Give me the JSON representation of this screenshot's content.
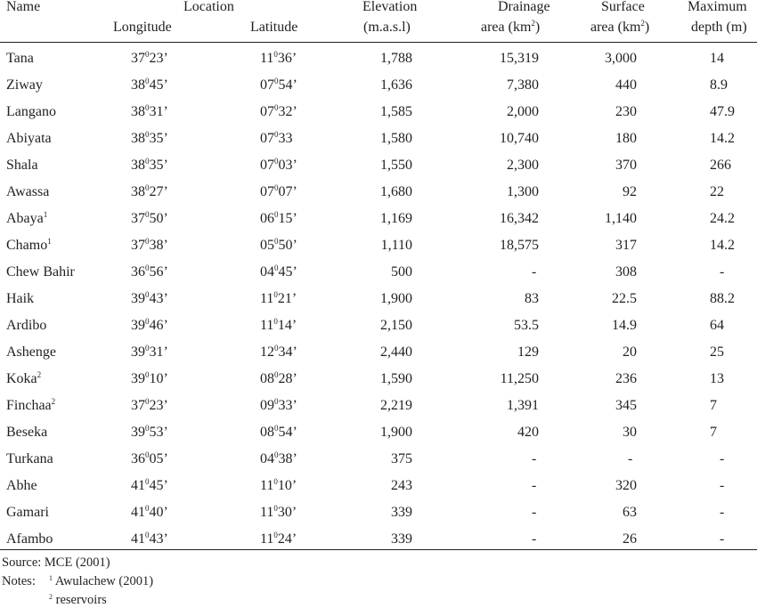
{
  "header": {
    "name": "Name",
    "location": "Location",
    "longitude": "Longitude",
    "latitude": "Latitude",
    "elevation_line1": "Elevation",
    "elevation_line2": "(m.a.s.l)",
    "drainage_line1": "Drainage",
    "drainage_line2": "area (km",
    "surface_line1": "Surface",
    "surface_line2": "area (km",
    "sq_unit_sup": "2",
    "unit_close": ")",
    "depth_line1": "Maximum",
    "depth_line2": "depth (m)"
  },
  "degree_symbol": "0",
  "rows": [
    {
      "name": "Tana",
      "sup": "",
      "lon_deg": "37",
      "lon_min": "23’",
      "lat_deg": "11",
      "lat_min": "36’",
      "elevation": "1,788",
      "drainage": "15,319",
      "surface": "3,000",
      "depth": "14"
    },
    {
      "name": "Ziway",
      "sup": "",
      "lon_deg": "38",
      "lon_min": "45’",
      "lat_deg": "07",
      "lat_min": "54’",
      "elevation": "1,636",
      "drainage": "7,380",
      "surface": "440",
      "depth": "8.9"
    },
    {
      "name": "Langano",
      "sup": "",
      "lon_deg": "38",
      "lon_min": "31’",
      "lat_deg": "07",
      "lat_min": "32’",
      "elevation": "1,585",
      "drainage": "2,000",
      "surface": "230",
      "depth": "47.9"
    },
    {
      "name": "Abiyata",
      "sup": "",
      "lon_deg": "38",
      "lon_min": "35’",
      "lat_deg": "07",
      "lat_min": "33",
      "elevation": "1,580",
      "drainage": "10,740",
      "surface": "180",
      "depth": "14.2"
    },
    {
      "name": "Shala",
      "sup": "",
      "lon_deg": "38",
      "lon_min": "35’",
      "lat_deg": "07",
      "lat_min": "03’",
      "elevation": "1,550",
      "drainage": "2,300",
      "surface": "370",
      "depth": "266"
    },
    {
      "name": "Awassa",
      "sup": "",
      "lon_deg": "38",
      "lon_min": "27’",
      "lat_deg": "07",
      "lat_min": "07’",
      "elevation": "1,680",
      "drainage": "1,300",
      "surface": "92",
      "depth": "22"
    },
    {
      "name": "Abaya",
      "sup": "1",
      "lon_deg": "37",
      "lon_min": "50’",
      "lat_deg": "06",
      "lat_min": "15’",
      "elevation": "1,169",
      "drainage": "16,342",
      "surface": "1,140",
      "depth": "24.2"
    },
    {
      "name": "Chamo",
      "sup": "1",
      "lon_deg": "37",
      "lon_min": "38’",
      "lat_deg": "05",
      "lat_min": "50’",
      "elevation": "1,110",
      "drainage": "18,575",
      "surface": "317",
      "depth": "14.2"
    },
    {
      "name": "Chew Bahir",
      "sup": "",
      "lon_deg": "36",
      "lon_min": "56’",
      "lat_deg": "04",
      "lat_min": "45’",
      "elevation": "500",
      "drainage": "-",
      "surface": "308",
      "depth": "-"
    },
    {
      "name": "Haik",
      "sup": "",
      "lon_deg": "39",
      "lon_min": "43’",
      "lat_deg": "11",
      "lat_min": "21’",
      "elevation": "1,900",
      "drainage": "83",
      "surface": "22.5",
      "depth": "88.2"
    },
    {
      "name": "Ardibo",
      "sup": "",
      "lon_deg": "39",
      "lon_min": "46’",
      "lat_deg": "11",
      "lat_min": "14’",
      "elevation": "2,150",
      "drainage": "53.5",
      "surface": "14.9",
      "depth": "64"
    },
    {
      "name": "Ashenge",
      "sup": "",
      "lon_deg": "39",
      "lon_min": "31’",
      "lat_deg": "12",
      "lat_min": "34’",
      "elevation": "2,440",
      "drainage": "129",
      "surface": "20",
      "depth": "25"
    },
    {
      "name": "Koka",
      "sup": "2",
      "lon_deg": "39",
      "lon_min": "10’",
      "lat_deg": "08",
      "lat_min": "28’",
      "elevation": "1,590",
      "drainage": "11,250",
      "surface": "236",
      "depth": "13"
    },
    {
      "name": "Finchaa",
      "sup": "2",
      "lon_deg": "37",
      "lon_min": "23’",
      "lat_deg": "09",
      "lat_min": "33’",
      "elevation": "2,219",
      "drainage": "1,391",
      "surface": "345",
      "depth": "7"
    },
    {
      "name": "Beseka",
      "sup": "",
      "lon_deg": "39",
      "lon_min": "53’",
      "lat_deg": "08",
      "lat_min": "54’",
      "elevation": "1,900",
      "drainage": "420",
      "surface": "30",
      "depth": "7"
    },
    {
      "name": "Turkana",
      "sup": "",
      "lon_deg": "36",
      "lon_min": "05’",
      "lat_deg": "04",
      "lat_min": "38’",
      "elevation": "375",
      "drainage": "-",
      "surface": "-",
      "depth": "-"
    },
    {
      "name": "Abhe",
      "sup": "",
      "lon_deg": "41",
      "lon_min": "45’",
      "lat_deg": "11",
      "lat_min": "10’",
      "elevation": "243",
      "drainage": "-",
      "surface": "320",
      "depth": "-"
    },
    {
      "name": "Gamari",
      "sup": "",
      "lon_deg": "41",
      "lon_min": "40’",
      "lat_deg": "11",
      "lat_min": "30’",
      "elevation": "339",
      "drainage": "-",
      "surface": "63",
      "depth": "-"
    },
    {
      "name": "Afambo",
      "sup": "",
      "lon_deg": "41",
      "lon_min": "43’",
      "lat_deg": "11",
      "lat_min": "24’",
      "elevation": "339",
      "drainage": "-",
      "surface": "26",
      "depth": "-"
    }
  ],
  "footer": {
    "source": "Source: MCE (2001)",
    "notes_label": "Notes:",
    "note1_sup": "1",
    "note1_text": " Awulachew (2001)",
    "note2_sup": "2",
    "note2_text": " reservoirs"
  }
}
